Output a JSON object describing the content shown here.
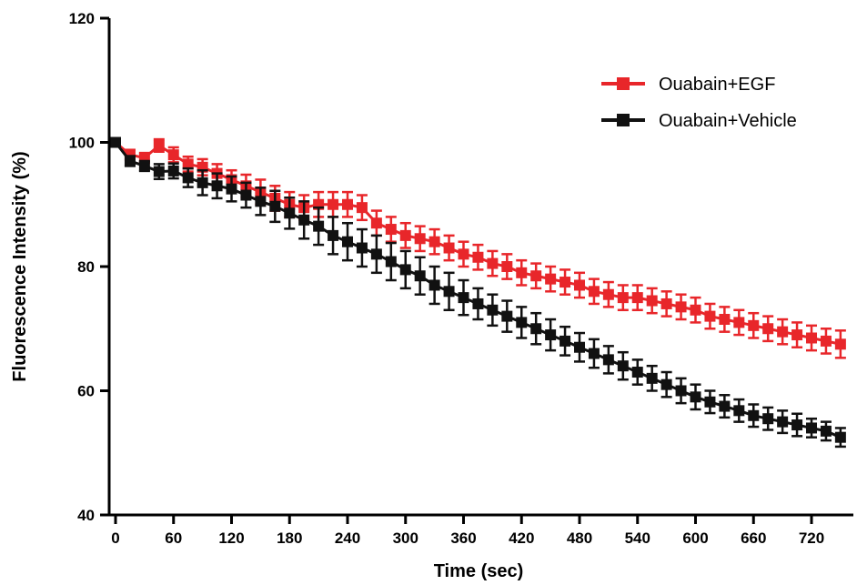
{
  "chart_data": {
    "type": "line",
    "xlabel": "Time (sec)",
    "ylabel": "Fluorescence Intensity (%)",
    "xlim": [
      -5,
      760
    ],
    "ylim": [
      40,
      120
    ],
    "x_ticks": [
      0,
      60,
      120,
      180,
      240,
      300,
      360,
      420,
      480,
      540,
      600,
      660,
      720
    ],
    "y_ticks": [
      40,
      60,
      80,
      100,
      120
    ],
    "legend_position": "top-right",
    "grid": false,
    "series": [
      {
        "name": "Ouabain+EGF",
        "color": "#e8262a",
        "x": [
          0,
          15,
          30,
          45,
          60,
          75,
          90,
          105,
          120,
          135,
          150,
          165,
          180,
          195,
          210,
          225,
          240,
          255,
          270,
          285,
          300,
          315,
          330,
          345,
          360,
          375,
          390,
          405,
          420,
          435,
          450,
          465,
          480,
          495,
          510,
          525,
          540,
          555,
          570,
          585,
          600,
          615,
          630,
          645,
          660,
          675,
          690,
          705,
          720,
          735,
          750
        ],
        "values": [
          100,
          98.0,
          97.5,
          99.5,
          98.0,
          96.5,
          96.0,
          95.0,
          94.0,
          93.0,
          92.0,
          91.0,
          90.0,
          89.5,
          90.0,
          90.0,
          90.0,
          89.5,
          87.0,
          86.0,
          85.0,
          84.5,
          84.0,
          83.0,
          82.0,
          81.5,
          80.5,
          80.0,
          79.0,
          78.5,
          78.0,
          77.5,
          77.0,
          76.0,
          75.5,
          75.0,
          75.0,
          74.5,
          74.0,
          73.5,
          73.0,
          72.0,
          71.5,
          71.0,
          70.5,
          70.0,
          69.5,
          69.0,
          68.5,
          68.0,
          67.5
        ],
        "error": [
          0.5,
          0.8,
          0.8,
          1.0,
          1.2,
          1.2,
          1.3,
          1.5,
          1.5,
          1.8,
          2.0,
          2.0,
          2.0,
          2.0,
          2.0,
          2.0,
          2.0,
          2.0,
          2.0,
          2.0,
          2.0,
          2.0,
          2.0,
          2.0,
          2.0,
          2.0,
          2.0,
          2.0,
          2.0,
          2.0,
          2.0,
          2.0,
          2.0,
          2.0,
          2.0,
          2.0,
          2.0,
          2.0,
          2.0,
          2.0,
          2.0,
          2.0,
          2.0,
          2.0,
          2.0,
          2.0,
          2.0,
          2.0,
          2.0,
          2.0,
          2.2
        ]
      },
      {
        "name": "Ouabain+Vehicle",
        "color": "#111111",
        "x": [
          0,
          15,
          30,
          45,
          60,
          75,
          90,
          105,
          120,
          135,
          150,
          165,
          180,
          195,
          210,
          225,
          240,
          255,
          270,
          285,
          300,
          315,
          330,
          345,
          360,
          375,
          390,
          405,
          420,
          435,
          450,
          465,
          480,
          495,
          510,
          525,
          540,
          555,
          570,
          585,
          600,
          615,
          630,
          645,
          660,
          675,
          690,
          705,
          720,
          735,
          750
        ],
        "values": [
          100,
          97.0,
          96.2,
          95.3,
          95.4,
          94.3,
          93.5,
          93.0,
          92.5,
          91.5,
          90.5,
          89.7,
          88.6,
          87.5,
          86.5,
          85.0,
          84.0,
          83.0,
          82.0,
          80.8,
          79.5,
          78.5,
          77.0,
          76.0,
          75.0,
          74.0,
          73.0,
          72.0,
          71.0,
          70.0,
          69.0,
          68.0,
          67.0,
          66.0,
          65.0,
          64.0,
          63.0,
          62.0,
          61.0,
          60.0,
          59.0,
          58.2,
          57.5,
          56.8,
          56.0,
          55.5,
          55.0,
          54.5,
          54.0,
          53.5,
          52.5
        ],
        "error": [
          0.5,
          0.8,
          0.8,
          1.2,
          1.2,
          1.5,
          2.0,
          2.0,
          2.0,
          2.0,
          2.2,
          2.5,
          2.5,
          3.0,
          3.0,
          3.0,
          3.0,
          3.0,
          3.0,
          3.0,
          3.0,
          3.0,
          3.0,
          3.0,
          2.8,
          2.5,
          2.5,
          2.5,
          2.5,
          2.5,
          2.5,
          2.3,
          2.3,
          2.3,
          2.2,
          2.2,
          2.0,
          2.0,
          2.0,
          2.0,
          2.0,
          1.8,
          1.8,
          1.8,
          1.8,
          1.8,
          1.8,
          1.8,
          1.5,
          1.5,
          1.5
        ]
      }
    ]
  }
}
